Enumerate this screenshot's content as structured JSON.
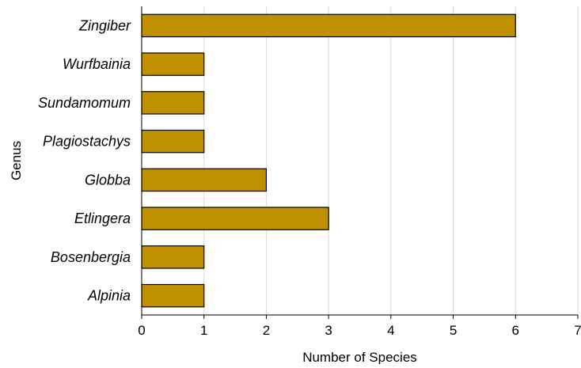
{
  "chart_data": {
    "type": "bar",
    "orientation": "horizontal",
    "title": "",
    "xlabel": "Number of Species",
    "ylabel": "Genus",
    "categories": [
      "Zingiber",
      "Wurfbainia",
      "Sundamomum",
      "Plagiostachys",
      "Globba",
      "Etlingera",
      "Bosenbergia",
      "Alpinia"
    ],
    "values": [
      6,
      1,
      1,
      1,
      2,
      3,
      1,
      1
    ],
    "xlim": [
      0,
      7
    ],
    "xticks": [
      "0",
      "1",
      "2",
      "3",
      "4",
      "5",
      "6",
      "7"
    ],
    "grid": "vertical",
    "legend": "none",
    "bar_color": "#BF9000",
    "bar_edge_color": "#000000",
    "grid_color": "#D9D9D9"
  }
}
